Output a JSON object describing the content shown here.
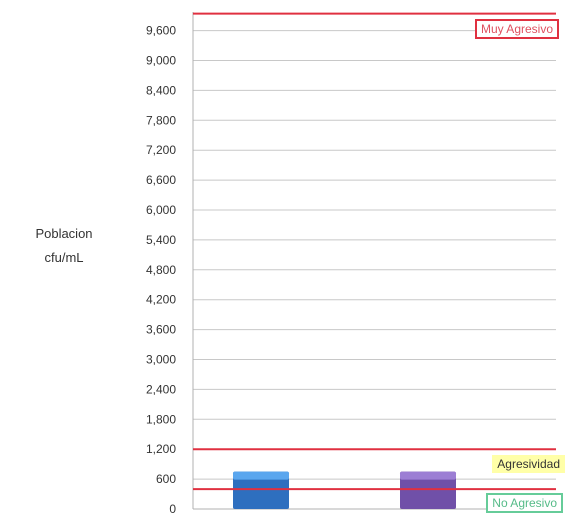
{
  "chart_data": {
    "type": "bar",
    "title": "",
    "ylabel_line1": "Poblacion",
    "ylabel_line2": "cfu/mL",
    "ylim": [
      0,
      9900
    ],
    "ytick_step": 600,
    "ytick_labels": [
      "0",
      "600",
      "1,200",
      "1,800",
      "2,400",
      "3,000",
      "3,600",
      "4,200",
      "4,800",
      "5,400",
      "6,000",
      "6,600",
      "7,200",
      "7,800",
      "8,400",
      "9,000",
      "9,600"
    ],
    "grid": true,
    "categories": [
      "",
      ""
    ],
    "values": [
      750,
      750
    ],
    "bar_colors": [
      "#2e6fbf",
      "#7050a8"
    ],
    "bar_colors_light": [
      "#5aa6ee",
      "#9c7ed4"
    ],
    "thresholds": [
      {
        "value": 400,
        "label": "No Agresivo",
        "color": "#e03040"
      },
      {
        "value": 1200,
        "label": "Agresividad",
        "color": "#e03040"
      },
      {
        "value": 9940,
        "label": "Muy Agresivo",
        "color": "#e03040"
      }
    ]
  }
}
